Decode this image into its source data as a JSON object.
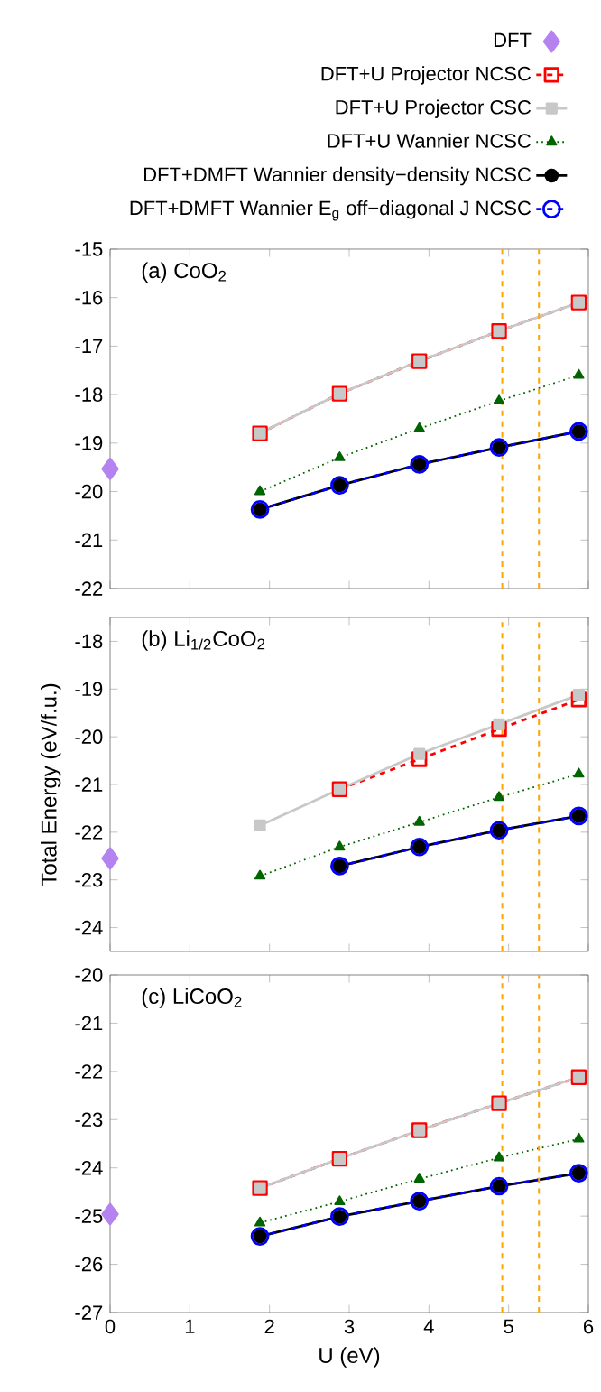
{
  "chart_data": [
    {
      "type": "line",
      "title": "(a) CoO$_{2}$",
      "xlim": [
        0,
        6
      ],
      "xticks": [
        0,
        1,
        2,
        3,
        4,
        5,
        6
      ],
      "ylim": [
        -22,
        -15
      ],
      "yticks": [
        -22,
        -21,
        -20,
        -19,
        -18,
        -17,
        -16,
        -15
      ],
      "tick_labels": "y",
      "legend": "top",
      "ref_lines": [
        {
          "axis": "x",
          "value": 4.92,
          "color": "#ffa500",
          "line_style": "dashed"
        },
        {
          "axis": "x",
          "value": 5.38,
          "color": "#ffa500",
          "line_style": "dashed"
        }
      ],
      "series": [
        {
          "name": "DFT",
          "type": "scatter",
          "marker": "diamond",
          "color": "#b583ef",
          "x": [
            0
          ],
          "values": [
            -19.53
          ]
        },
        {
          "name": "DFT+U Projector NCSC",
          "marker": "square",
          "line_style": "dashed",
          "color": "#ff0000",
          "x": [
            1.88,
            2.88,
            3.88,
            4.88,
            5.88
          ],
          "values": [
            -18.8,
            -17.98,
            -17.31,
            -16.69,
            -16.1
          ]
        },
        {
          "name": "DFT+U Projector CSC",
          "marker": "square",
          "line_style": "solid",
          "color": "#c8c8c8",
          "x": [
            1.88,
            2.88,
            3.88,
            4.88,
            5.88
          ],
          "values": [
            -18.8,
            -17.98,
            -17.31,
            -16.69,
            -16.1
          ]
        },
        {
          "name": "DFT+U Wannier NCSC",
          "marker": "triangle",
          "line_style": "dotted",
          "color": "#006400",
          "x": [
            1.88,
            2.88,
            3.88,
            4.88,
            5.88
          ],
          "values": [
            -20.0,
            -19.3,
            -18.7,
            -18.13,
            -17.6
          ]
        },
        {
          "name": "DFT+DMFT Wannier density−density NCSC",
          "marker": "circle",
          "line_style": "solid",
          "color": "#000000",
          "x": [
            1.88,
            2.88,
            3.88,
            4.88,
            5.88
          ],
          "values": [
            -20.37,
            -19.87,
            -19.44,
            -19.09,
            -18.76
          ]
        },
        {
          "name": "DFT+DMFT Wannier E$_{g}$ off−diagonal J NCSC",
          "marker": "circle",
          "line_style": "dashed",
          "color": "#0000ff",
          "x": [
            1.88,
            2.88,
            3.88,
            4.88,
            5.88
          ],
          "values": [
            -20.37,
            -19.87,
            -19.44,
            -19.09,
            -18.76
          ]
        }
      ]
    },
    {
      "type": "line",
      "title": "(b) Li$_{1/2}$CoO$_{2}$",
      "ylabel": "Total Energy (eV/f.u.)",
      "xlim": [
        0,
        6
      ],
      "xticks": [
        0,
        1,
        2,
        3,
        4,
        5,
        6
      ],
      "ylim": [
        -24.5,
        -17.5
      ],
      "yticks": [
        -24,
        -23,
        -22,
        -21,
        -20,
        -19,
        -18
      ],
      "tick_labels": "y",
      "ref_lines": [
        {
          "axis": "x",
          "value": 4.92,
          "color": "#ffa500",
          "line_style": "dashed"
        },
        {
          "axis": "x",
          "value": 5.38,
          "color": "#ffa500",
          "line_style": "dashed"
        }
      ],
      "series": [
        {
          "type": "scatter",
          "marker": "diamond",
          "color": "#b583ef",
          "x": [
            0
          ],
          "values": [
            -22.55
          ]
        },
        {
          "marker": "square",
          "line_style": "dashed",
          "color": "#ff0000",
          "x": [
            2.88,
            3.88,
            4.88,
            5.88
          ],
          "values": [
            -21.1,
            -20.47,
            -19.84,
            -19.22
          ]
        },
        {
          "marker": "square",
          "line_style": "solid",
          "color": "#c8c8c8",
          "x": [
            1.88,
            2.88,
            3.88,
            4.88,
            5.88
          ],
          "values": [
            -21.86,
            -21.1,
            -20.36,
            -19.74,
            -19.12
          ]
        },
        {
          "marker": "triangle",
          "line_style": "dotted",
          "color": "#006400",
          "x": [
            1.88,
            2.88,
            3.88,
            4.88,
            5.88
          ],
          "values": [
            -22.92,
            -22.31,
            -21.79,
            -21.27,
            -20.78
          ]
        },
        {
          "marker": "circle",
          "line_style": "solid",
          "color": "#000000",
          "x": [
            2.88,
            3.88,
            4.88,
            5.88
          ],
          "values": [
            -22.71,
            -22.31,
            -21.96,
            -21.66
          ]
        },
        {
          "marker": "circle",
          "line_style": "dashed",
          "color": "#0000ff",
          "x": [
            2.88,
            3.88,
            4.88,
            5.88
          ],
          "values": [
            -22.71,
            -22.31,
            -21.96,
            -21.66
          ]
        }
      ]
    },
    {
      "type": "line",
      "title": "(c) LiCoO$_{2}$",
      "xlabel": "U (eV)",
      "xlim": [
        0,
        6
      ],
      "xticks": [
        0,
        1,
        2,
        3,
        4,
        5,
        6
      ],
      "ylim": [
        -27,
        -20
      ],
      "yticks": [
        -27,
        -26,
        -25,
        -24,
        -23,
        -22,
        -21,
        -20
      ],
      "ref_lines": [
        {
          "axis": "x",
          "value": 4.92,
          "color": "#ffa500",
          "line_style": "dashed"
        },
        {
          "axis": "x",
          "value": 5.38,
          "color": "#ffa500",
          "line_style": "dashed"
        }
      ],
      "series": [
        {
          "type": "scatter",
          "marker": "diamond",
          "color": "#b583ef",
          "x": [
            0
          ],
          "values": [
            -24.96
          ]
        },
        {
          "marker": "square",
          "line_style": "dashed",
          "color": "#ff0000",
          "x": [
            1.88,
            2.88,
            3.88,
            4.88,
            5.88
          ],
          "values": [
            -24.42,
            -23.81,
            -23.22,
            -22.66,
            -22.12
          ]
        },
        {
          "marker": "square",
          "line_style": "solid",
          "color": "#c8c8c8",
          "x": [
            1.88,
            2.88,
            3.88,
            4.88,
            5.88
          ],
          "values": [
            -24.42,
            -23.81,
            -23.22,
            -22.66,
            -22.12
          ]
        },
        {
          "marker": "triangle",
          "line_style": "dotted",
          "color": "#006400",
          "x": [
            1.88,
            2.88,
            3.88,
            4.88,
            5.88
          ],
          "values": [
            -25.14,
            -24.7,
            -24.23,
            -23.79,
            -23.4
          ]
        },
        {
          "marker": "circle",
          "line_style": "solid",
          "color": "#000000",
          "x": [
            1.88,
            2.88,
            3.88,
            4.88,
            5.88
          ],
          "values": [
            -25.42,
            -25.01,
            -24.69,
            -24.38,
            -24.11
          ]
        },
        {
          "marker": "circle",
          "line_style": "dashed",
          "color": "#0000ff",
          "x": [
            1.88,
            2.88,
            3.88,
            4.88,
            5.88
          ],
          "values": [
            -25.42,
            -25.01,
            -24.69,
            -24.38,
            -24.11
          ]
        }
      ]
    }
  ]
}
